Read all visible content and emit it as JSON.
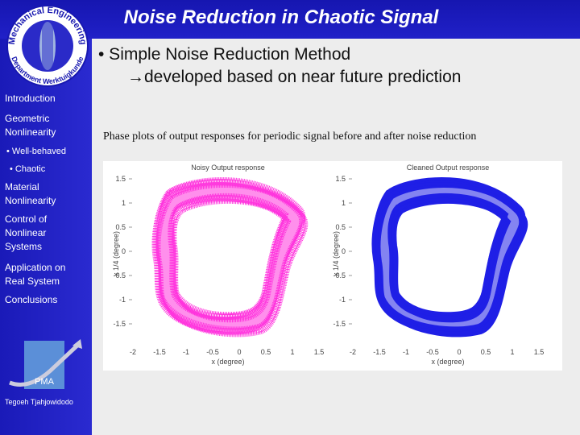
{
  "header": {
    "title": "Noise Reduction in Chaotic Signal"
  },
  "logo": {
    "top": "Mechanical Engineering",
    "bottom": "Department Werktuigkunde"
  },
  "sidebar": {
    "items": [
      "Introduction",
      "Geometric Nonlinearity",
      "• Well-behaved",
      "• Chaotic",
      "Material Nonlinearity",
      "Control of Nonlinear Systems",
      "Application on Real System",
      "Conclusions"
    ],
    "badge": "PMA",
    "author": "Tegoeh Tjahjowidodo"
  },
  "content": {
    "bullet": "• Simple Noise Reduction Method",
    "sub": "→developed based on near future prediction",
    "caption": "Phase plots of output responses for periodic signal before and after noise reduction"
  },
  "plots": [
    {
      "title": "Noisy Output response",
      "xlabel": "x (degree)",
      "ylabel": "x 1/4 (degree)",
      "yticks": [
        "1.5",
        "1",
        "0.5",
        "0",
        "-0.5",
        "-1",
        "-1.5"
      ],
      "xticks": [
        "-2",
        "-1.5",
        "-1",
        "-0.5",
        "0",
        "0.5",
        "1",
        "1.5"
      ]
    },
    {
      "title": "Cleaned Output response",
      "xlabel": "x (degree)",
      "ylabel": "x 1/4 (degree)",
      "yticks": [
        "1.5",
        "1",
        "0.5",
        "0",
        "-0.5",
        "-1",
        "-1.5"
      ],
      "xticks": [
        "-2",
        "-1.5",
        "-1",
        "-0.5",
        "0",
        "0.5",
        "1",
        "1.5"
      ]
    }
  ]
}
